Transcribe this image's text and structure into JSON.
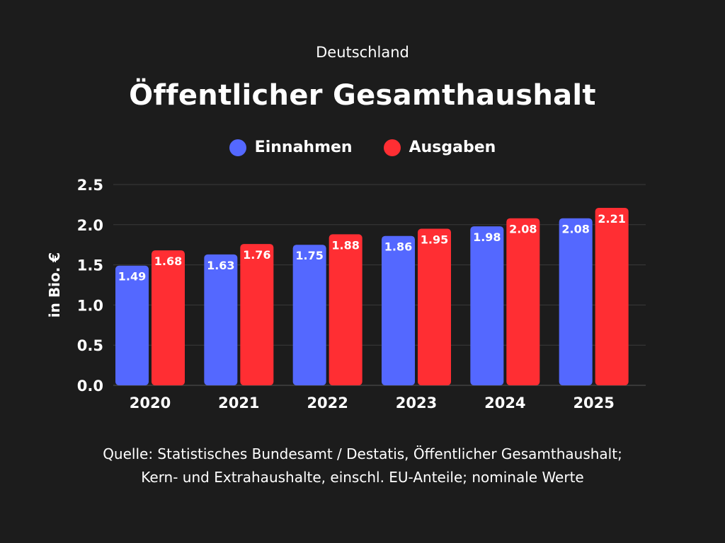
{
  "chart_data": {
    "type": "bar",
    "subtitle": "Deutschland",
    "title": "Öffentlicher Gesamthaushalt",
    "ylabel": "in Bio. €",
    "xlabel": "",
    "categories": [
      "2020",
      "2021",
      "2022",
      "2023",
      "2024",
      "2025"
    ],
    "series": [
      {
        "name": "Einnahmen",
        "color": "#5468ff",
        "values": [
          1.49,
          1.63,
          1.75,
          1.86,
          1.98,
          2.08
        ]
      },
      {
        "name": "Ausgaben",
        "color": "#ff2e33",
        "values": [
          1.68,
          1.76,
          1.88,
          1.95,
          2.08,
          2.21
        ]
      }
    ],
    "ylim": [
      0,
      2.5
    ],
    "yticks": [
      "0.0",
      "0.5",
      "1.0",
      "1.5",
      "2.0",
      "2.5"
    ],
    "grid": true,
    "legend": "top-center",
    "data_labels": true
  },
  "source": {
    "line1": "Quelle: Statistisches Bundesamt / Destatis, Öffentlicher Gesamthaushalt;",
    "line2": "Kern- und Extrahaushalte, einschl. EU-Anteile; nominale Werte"
  }
}
